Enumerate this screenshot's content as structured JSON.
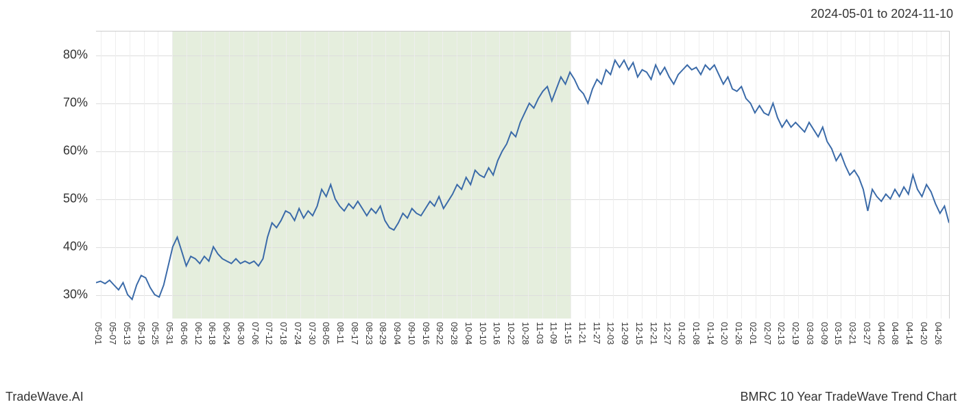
{
  "header": {
    "date_range": "2024-05-01 to 2024-11-10"
  },
  "footer": {
    "left_text": "TradeWave.AI",
    "right_text": "BMRC 10 Year TradeWave Trend Chart"
  },
  "chart": {
    "type": "line",
    "background_color": "#ffffff",
    "grid_color_h": "#dddddd",
    "grid_color_v": "#eeeeee",
    "border_color": "#cccccc",
    "line_color": "#3a6aa8",
    "line_width": 2,
    "shaded_region_color": "#e5eedd",
    "shaded_region_start_index": 5,
    "shaded_region_end_index": 33,
    "y_axis": {
      "min": 25,
      "max": 85,
      "ticks": [
        30,
        40,
        50,
        60,
        70,
        80
      ],
      "tick_labels": [
        "30%",
        "40%",
        "50%",
        "60%",
        "70%",
        "80%"
      ],
      "label_fontsize": 18,
      "label_color": "#333333"
    },
    "x_axis": {
      "labels": [
        "05-01",
        "05-07",
        "05-13",
        "05-19",
        "05-25",
        "05-31",
        "06-06",
        "06-12",
        "06-18",
        "06-24",
        "06-30",
        "07-06",
        "07-12",
        "07-18",
        "07-24",
        "07-30",
        "08-05",
        "08-11",
        "08-17",
        "08-23",
        "08-29",
        "09-04",
        "09-10",
        "09-16",
        "09-22",
        "09-28",
        "10-04",
        "10-10",
        "10-16",
        "10-22",
        "10-28",
        "11-03",
        "11-09",
        "11-15",
        "11-21",
        "11-27",
        "12-03",
        "12-09",
        "12-15",
        "12-21",
        "12-27",
        "01-02",
        "01-08",
        "01-14",
        "01-20",
        "01-26",
        "02-01",
        "02-07",
        "02-13",
        "02-19",
        "03-03",
        "03-09",
        "03-15",
        "03-21",
        "03-27",
        "04-02",
        "04-08",
        "04-14",
        "04-20",
        "04-26"
      ],
      "label_fontsize": 13,
      "label_color": "#333333",
      "label_rotation": 90
    },
    "series": {
      "values": [
        32.5,
        32.8,
        32.3,
        33.0,
        32.0,
        31.0,
        32.5,
        30.0,
        29.0,
        32.0,
        34.0,
        33.5,
        31.5,
        30.0,
        29.5,
        32.0,
        36.0,
        40.0,
        42.0,
        39.0,
        36.0,
        38.0,
        37.5,
        36.5,
        38.0,
        37.0,
        40.0,
        38.5,
        37.5,
        37.0,
        36.5,
        37.5,
        36.5,
        37.0,
        36.5,
        37.0,
        36.0,
        37.5,
        42.0,
        45.0,
        44.0,
        45.5,
        47.5,
        47.0,
        45.5,
        48.0,
        46.0,
        47.5,
        46.5,
        48.5,
        52.0,
        50.5,
        53.0,
        50.0,
        48.5,
        47.5,
        49.0,
        48.0,
        49.5,
        48.0,
        46.5,
        48.0,
        47.0,
        48.5,
        45.5,
        44.0,
        43.5,
        45.0,
        47.0,
        46.0,
        48.0,
        47.0,
        46.5,
        48.0,
        49.5,
        48.5,
        50.5,
        48.0,
        49.5,
        51.0,
        53.0,
        52.0,
        54.5,
        53.0,
        56.0,
        55.0,
        54.5,
        56.5,
        55.0,
        58.0,
        60.0,
        61.5,
        64.0,
        63.0,
        66.0,
        68.0,
        70.0,
        69.0,
        71.0,
        72.5,
        73.5,
        70.5,
        73.0,
        75.5,
        74.0,
        76.5,
        75.0,
        73.0,
        72.0,
        70.0,
        73.0,
        75.0,
        74.0,
        77.0,
        76.0,
        79.0,
        77.5,
        79.0,
        77.0,
        78.5,
        75.5,
        77.0,
        76.5,
        75.0,
        78.0,
        76.0,
        77.5,
        75.5,
        74.0,
        76.0,
        77.0,
        78.0,
        77.0,
        77.5,
        76.0,
        78.0,
        77.0,
        78.0,
        76.0,
        74.0,
        75.5,
        73.0,
        72.5,
        73.5,
        71.0,
        70.0,
        68.0,
        69.5,
        68.0,
        67.5,
        70.0,
        67.0,
        65.0,
        66.5,
        65.0,
        66.0,
        65.0,
        64.0,
        66.0,
        64.5,
        63.0,
        65.0,
        62.0,
        60.5,
        58.0,
        59.5,
        57.0,
        55.0,
        56.0,
        54.5,
        52.0,
        47.5,
        52.0,
        50.5,
        49.5,
        51.0,
        50.0,
        52.0,
        50.5,
        52.5,
        51.0,
        55.0,
        52.0,
        50.5,
        53.0,
        51.5,
        49.0,
        47.0,
        48.5,
        45.0
      ]
    },
    "title_fontsize": 18,
    "footer_fontsize": 18
  }
}
